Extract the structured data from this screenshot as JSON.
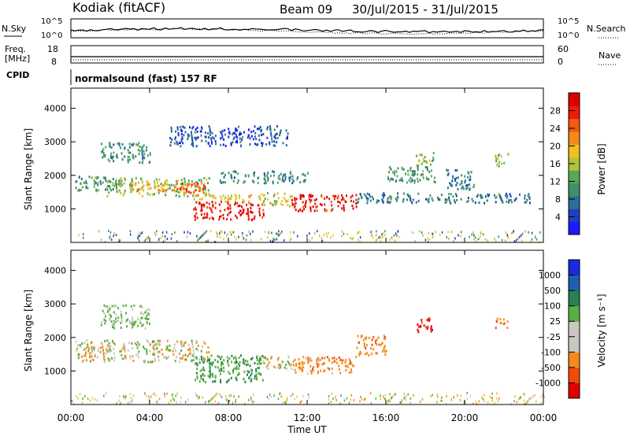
{
  "header": {
    "station": "Kodiak (fitACF)",
    "beam": "Beam 09",
    "date_range": "30/Jul/2015 - 31/Jul/2015"
  },
  "noise_panel": {
    "left_label": "N.Sky",
    "right_label": "N.Search",
    "left_ticks": [
      "10^5",
      "10^0"
    ],
    "right_ticks": [
      "10^5",
      "10^0"
    ]
  },
  "freq_panel": {
    "left_label_line1": "Freq.",
    "left_label_line2": "[MHz]",
    "right_label": "Nave",
    "left_ticks": [
      "18",
      "8"
    ],
    "right_ticks": [
      "60",
      "0"
    ],
    "cpid_label": "CPID",
    "cpid_text": "normalsound (fast) 157 RF"
  },
  "colors": {
    "power_scale": [
      "#1a1aff",
      "#1f3fbf",
      "#2a6e9a",
      "#3f8f6a",
      "#58a858",
      "#b4c23a",
      "#f0c020",
      "#f58a1a",
      "#f25a10",
      "#ee1a0a",
      "#dd0000"
    ],
    "velocity_scale": [
      "#e00000",
      "#f04a0a",
      "#f58a1a",
      "#c8c8c0",
      "#c8c8c0",
      "#58b040",
      "#2a7f55",
      "#1f5fb0",
      "#1a2ae0"
    ],
    "ground_scatter": "#b8b8b0"
  },
  "chart_data": [
    {
      "type": "heatmap",
      "title": "Power",
      "xlabel": "Time UT",
      "ylabel": "Slant Range [km]",
      "x_ticks": [
        "00:00",
        "04:00",
        "08:00",
        "12:00",
        "16:00",
        "20:00",
        "00:00"
      ],
      "x_range_hours": [
        0,
        24
      ],
      "y_ticks": [
        1000,
        2000,
        3000,
        4000
      ],
      "ylim": [
        0,
        4600
      ],
      "colorbar": {
        "label": "Power [dB]",
        "ticks": [
          4,
          8,
          12,
          16,
          20,
          24,
          28
        ],
        "range": [
          0,
          30
        ]
      },
      "regions": [
        {
          "t0": 0.2,
          "t1": 2.5,
          "r0": 1550,
          "r1": 2000,
          "v": 10
        },
        {
          "t0": 1.8,
          "t1": 7.0,
          "r0": 1400,
          "r1": 1950,
          "v": 14
        },
        {
          "t0": 3.0,
          "t1": 6.5,
          "r0": 1550,
          "r1": 1800,
          "v": 20
        },
        {
          "t0": 5.5,
          "t1": 6.8,
          "r0": 1500,
          "r1": 1800,
          "v": 24
        },
        {
          "t0": 6.2,
          "t1": 9.8,
          "r0": 700,
          "r1": 1250,
          "v": 28
        },
        {
          "t0": 6.2,
          "t1": 9.8,
          "r0": 1250,
          "r1": 1450,
          "v": 18
        },
        {
          "t0": 9.5,
          "t1": 11.2,
          "r0": 1100,
          "r1": 1500,
          "v": 16
        },
        {
          "t0": 11.2,
          "t1": 14.5,
          "r0": 950,
          "r1": 1450,
          "v": 27
        },
        {
          "t0": 7.5,
          "t1": 12.0,
          "r0": 1800,
          "r1": 2150,
          "v": 9
        },
        {
          "t0": 14.5,
          "t1": 23.5,
          "r0": 1200,
          "r1": 1500,
          "v": 8
        },
        {
          "t0": 16.0,
          "t1": 18.5,
          "r0": 1800,
          "r1": 2300,
          "v": 10
        },
        {
          "t0": 17.5,
          "t1": 18.4,
          "r0": 2300,
          "r1": 2700,
          "v": 14
        },
        {
          "t0": 19.0,
          "t1": 20.5,
          "r0": 1600,
          "r1": 2200,
          "v": 8
        },
        {
          "t0": 21.5,
          "t1": 22.2,
          "r0": 2300,
          "r1": 2700,
          "v": 14
        },
        {
          "t0": 1.5,
          "t1": 4.0,
          "r0": 2400,
          "r1": 3000,
          "v": 9
        },
        {
          "t0": 5.0,
          "t1": 11.0,
          "r0": 2900,
          "r1": 3500,
          "v": 5
        }
      ]
    },
    {
      "type": "heatmap",
      "title": "Velocity",
      "xlabel": "Time UT",
      "ylabel": "Slant Range [km]",
      "x_ticks": [
        "00:00",
        "04:00",
        "08:00",
        "12:00",
        "16:00",
        "20:00",
        "00:00"
      ],
      "x_range_hours": [
        0,
        24
      ],
      "y_ticks": [
        1000,
        2000,
        3000,
        4000
      ],
      "ylim": [
        0,
        4600
      ],
      "colorbar": {
        "label": "Velocity [m s⁻¹]",
        "ticks": [
          "1000",
          "500",
          "100",
          "25",
          "-25",
          "-100",
          "-500",
          "-1000"
        ]
      },
      "regions": [
        {
          "t0": 0.2,
          "t1": 7.0,
          "r0": 1300,
          "r1": 1950,
          "v": 0
        },
        {
          "t0": 6.2,
          "t1": 9.8,
          "r0": 700,
          "r1": 1500,
          "v": 300
        },
        {
          "t0": 9.5,
          "t1": 11.2,
          "r0": 1100,
          "r1": 1500,
          "v": 0
        },
        {
          "t0": 11.2,
          "t1": 14.5,
          "r0": 950,
          "r1": 1450,
          "v": -200
        },
        {
          "t0": 14.5,
          "t1": 16.0,
          "r0": 1500,
          "r1": 2100,
          "v": -200
        },
        {
          "t0": 17.5,
          "t1": 18.4,
          "r0": 2200,
          "r1": 2600,
          "v": -800
        },
        {
          "t0": 21.5,
          "t1": 22.2,
          "r0": 2300,
          "r1": 2600,
          "v": -300
        },
        {
          "t0": 1.5,
          "t1": 4.0,
          "r0": 2300,
          "r1": 3000,
          "v": 100
        }
      ]
    }
  ]
}
